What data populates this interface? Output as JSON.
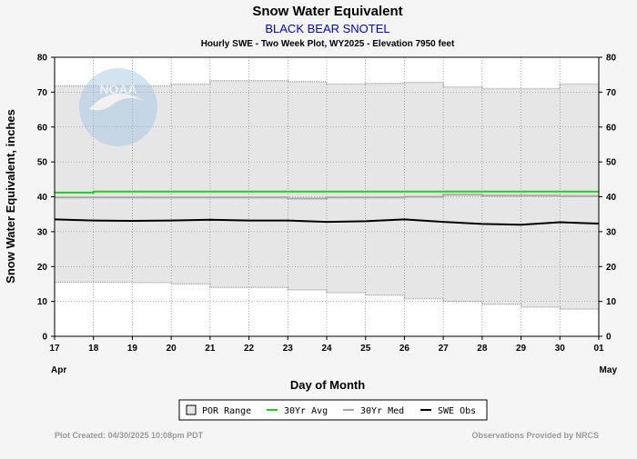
{
  "chart_data": {
    "type": "line",
    "title": "Snow Water Equivalent",
    "subtitle": "BLACK BEAR SNOTEL",
    "description": "Hourly SWE - Two Week Plot, WY2025 -  Elevation 7950 feet",
    "ylabel": "Snow Water Equivalent, inches",
    "xlabel": "Day of Month",
    "ylim": [
      0,
      80
    ],
    "yticks": [
      0,
      10,
      20,
      30,
      40,
      50,
      60,
      70,
      80
    ],
    "x_ticks": [
      "17",
      "18",
      "19",
      "20",
      "21",
      "22",
      "23",
      "24",
      "25",
      "26",
      "27",
      "28",
      "29",
      "30",
      "01"
    ],
    "month_labels": {
      "start": "Apr",
      "end": "May"
    },
    "watermark": "NOAA",
    "legend": [
      {
        "key": "por",
        "label": "POR Range"
      },
      {
        "key": "avg",
        "label": "30Yr Avg"
      },
      {
        "key": "med",
        "label": "30Yr Med"
      },
      {
        "key": "obs",
        "label": "SWE Obs"
      }
    ],
    "colors": {
      "por_fill": "#e6e6e6",
      "por_edge": "#aaaaaa",
      "avg": "#22cc22",
      "med": "#a8a8a8",
      "obs": "#000000",
      "title": "#000000",
      "subtitle": "#0000cc",
      "footer": "#999999"
    },
    "day_x": [
      0,
      1,
      2,
      3,
      4,
      5,
      6,
      7,
      8,
      9,
      10,
      11,
      12,
      13,
      14
    ],
    "series": [
      {
        "name": "POR Max",
        "values": [
          71.8,
          71.8,
          71.8,
          72.3,
          73.3,
          73.3,
          73.0,
          72.3,
          72.5,
          72.8,
          71.5,
          71.0,
          71.0,
          72.3,
          72.3
        ]
      },
      {
        "name": "POR Min",
        "values": [
          15.5,
          15.5,
          15.4,
          15.0,
          14.0,
          14.0,
          13.3,
          12.5,
          11.8,
          10.8,
          10.0,
          9.2,
          8.4,
          7.8,
          7.8
        ]
      },
      {
        "name": "30Yr Avg",
        "values": [
          41.2,
          41.5,
          41.5,
          41.5,
          41.5,
          41.5,
          41.5,
          41.5,
          41.5,
          41.5,
          41.5,
          41.5,
          41.5,
          41.5,
          41.5
        ]
      },
      {
        "name": "30Yr Med",
        "values": [
          39.8,
          39.8,
          39.8,
          39.8,
          39.8,
          39.8,
          39.5,
          39.8,
          39.8,
          40.0,
          40.6,
          40.3,
          40.3,
          40.2,
          40.2
        ]
      },
      {
        "name": "SWE Obs",
        "values": [
          33.5,
          33.2,
          33.1,
          33.2,
          33.4,
          33.2,
          33.2,
          32.8,
          33.0,
          33.5,
          32.8,
          32.2,
          32.0,
          32.7,
          32.3
        ]
      }
    ],
    "footer_left": "Plot Created: 04/30/2025 10:08pm PDT",
    "footer_right": "Observations Provided by NRCS"
  }
}
